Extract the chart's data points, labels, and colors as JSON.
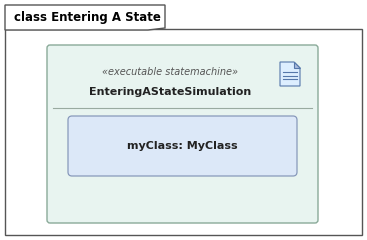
{
  "bg_color": "#ffffff",
  "outer_border_color": "#555555",
  "outer_bg": "#ffffff",
  "tab_text": "class Entering A State",
  "tab_font_size": 8.5,
  "tab_text_color": "#000000",
  "inner_bg": "#e8f4f0",
  "inner_border_color": "#8aaa99",
  "header_stereotype": "«executable statemachine»",
  "header_name": "EnteringAStateSimulation",
  "header_text_color": "#555555",
  "header_name_color": "#222222",
  "stereotype_font_size": 7.0,
  "name_font_size": 8.0,
  "inner_item_bg": "#dce8f8",
  "inner_item_border": "#8899bb",
  "inner_item_text": "myClass: MyClass",
  "inner_item_text_color": "#222222",
  "inner_item_font_size": 8.0,
  "divider_color": "#99aaa0",
  "icon_color": "#5577aa",
  "icon_face": "#ddeeff",
  "icon_fold": "#aabbdd"
}
